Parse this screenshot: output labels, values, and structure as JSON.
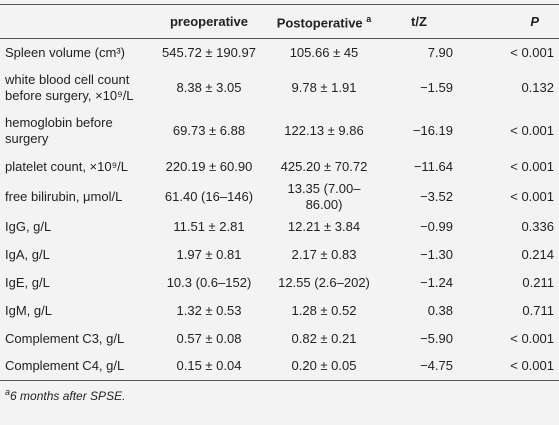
{
  "table": {
    "header": [
      "preoperative",
      "Postoperative",
      "t/Z",
      "P"
    ],
    "header_note": "a",
    "rows": [
      [
        "Spleen volume (cm³)",
        "545.72 ± 190.97",
        "105.66 ± 45",
        "7.90",
        "< 0.001"
      ],
      [
        "white blood cell count before surgery, ×10⁹/L",
        "8.38 ± 3.05",
        "9.78 ± 1.91",
        "−1.59",
        "0.132"
      ],
      [
        "hemoglobin before surgery",
        "69.73 ± 6.88",
        "122.13 ± 9.86",
        "−16.19",
        "< 0.001"
      ],
      [
        "platelet count, ×10⁹/L",
        "220.19 ± 60.90",
        "425.20 ± 70.72",
        "−11.64",
        "< 0.001"
      ],
      [
        "free bilirubin, μmol/L",
        "61.40 (16–146)",
        "13.35 (7.00–86.00)",
        "−3.52",
        "< 0.001"
      ],
      [
        "IgG, g/L",
        "11.51 ± 2.81",
        "12.21 ± 3.84",
        "−0.99",
        "0.336"
      ],
      [
        "IgA, g/L",
        "1.97 ± 0.81",
        "2.17 ± 0.83",
        "−1.30",
        "0.214"
      ],
      [
        "IgE, g/L",
        "10.3 (0.6–152)",
        "12.55 (2.6–202)",
        "−1.24",
        "0.211"
      ],
      [
        "IgM, g/L",
        "1.32 ± 0.53",
        "1.28 ± 0.52",
        "0.38",
        "0.711"
      ],
      [
        "Complement C3, g/L",
        "0.57 ± 0.08",
        "0.82 ± 0.21",
        "−5.90",
        "< 0.001"
      ],
      [
        "Complement C4, g/L",
        "0.15 ± 0.04",
        "0.20 ± 0.05",
        "−4.75",
        "< 0.001"
      ]
    ]
  },
  "footnote": {
    "marker": "a",
    "text": "6 months after SPSE."
  }
}
